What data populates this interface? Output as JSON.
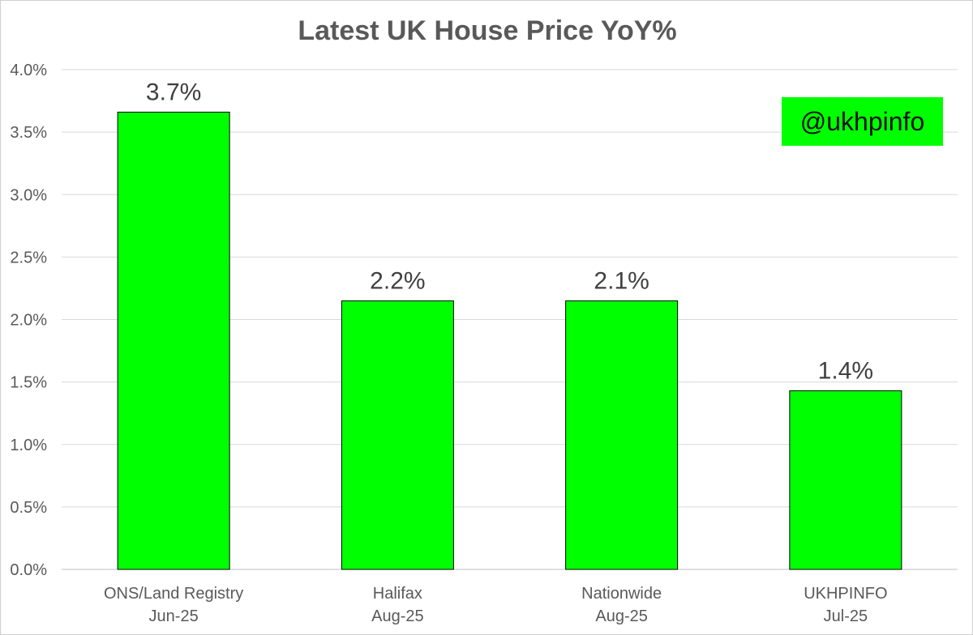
{
  "chart_data": {
    "type": "bar",
    "title": "Latest UK House Price YoY%",
    "categories": [
      [
        "ONS/Land Registry",
        "Jun-25"
      ],
      [
        "Halifax",
        "Aug-25"
      ],
      [
        "Nationwide",
        "Aug-25"
      ],
      [
        "UKHPINFO",
        "Jul-25"
      ]
    ],
    "values": [
      3.66,
      2.15,
      2.15,
      1.43
    ],
    "data_labels": [
      "3.7%",
      "2.2%",
      "2.1%",
      "1.4%"
    ],
    "ylim": [
      0,
      4.0
    ],
    "y_ticks": [
      0,
      0.5,
      1.0,
      1.5,
      2.0,
      2.5,
      3.0,
      3.5,
      4.0
    ],
    "y_tick_labels": [
      "0.0%",
      "0.5%",
      "1.0%",
      "1.5%",
      "2.0%",
      "2.5%",
      "3.0%",
      "3.5%",
      "4.0%"
    ],
    "xlabel": "",
    "ylabel": "",
    "grid": true,
    "bar_color": "#00ff00",
    "bar_edge_color": "#000000"
  },
  "watermark": {
    "text": "@ukhpinfo",
    "background": "#00ff00"
  }
}
